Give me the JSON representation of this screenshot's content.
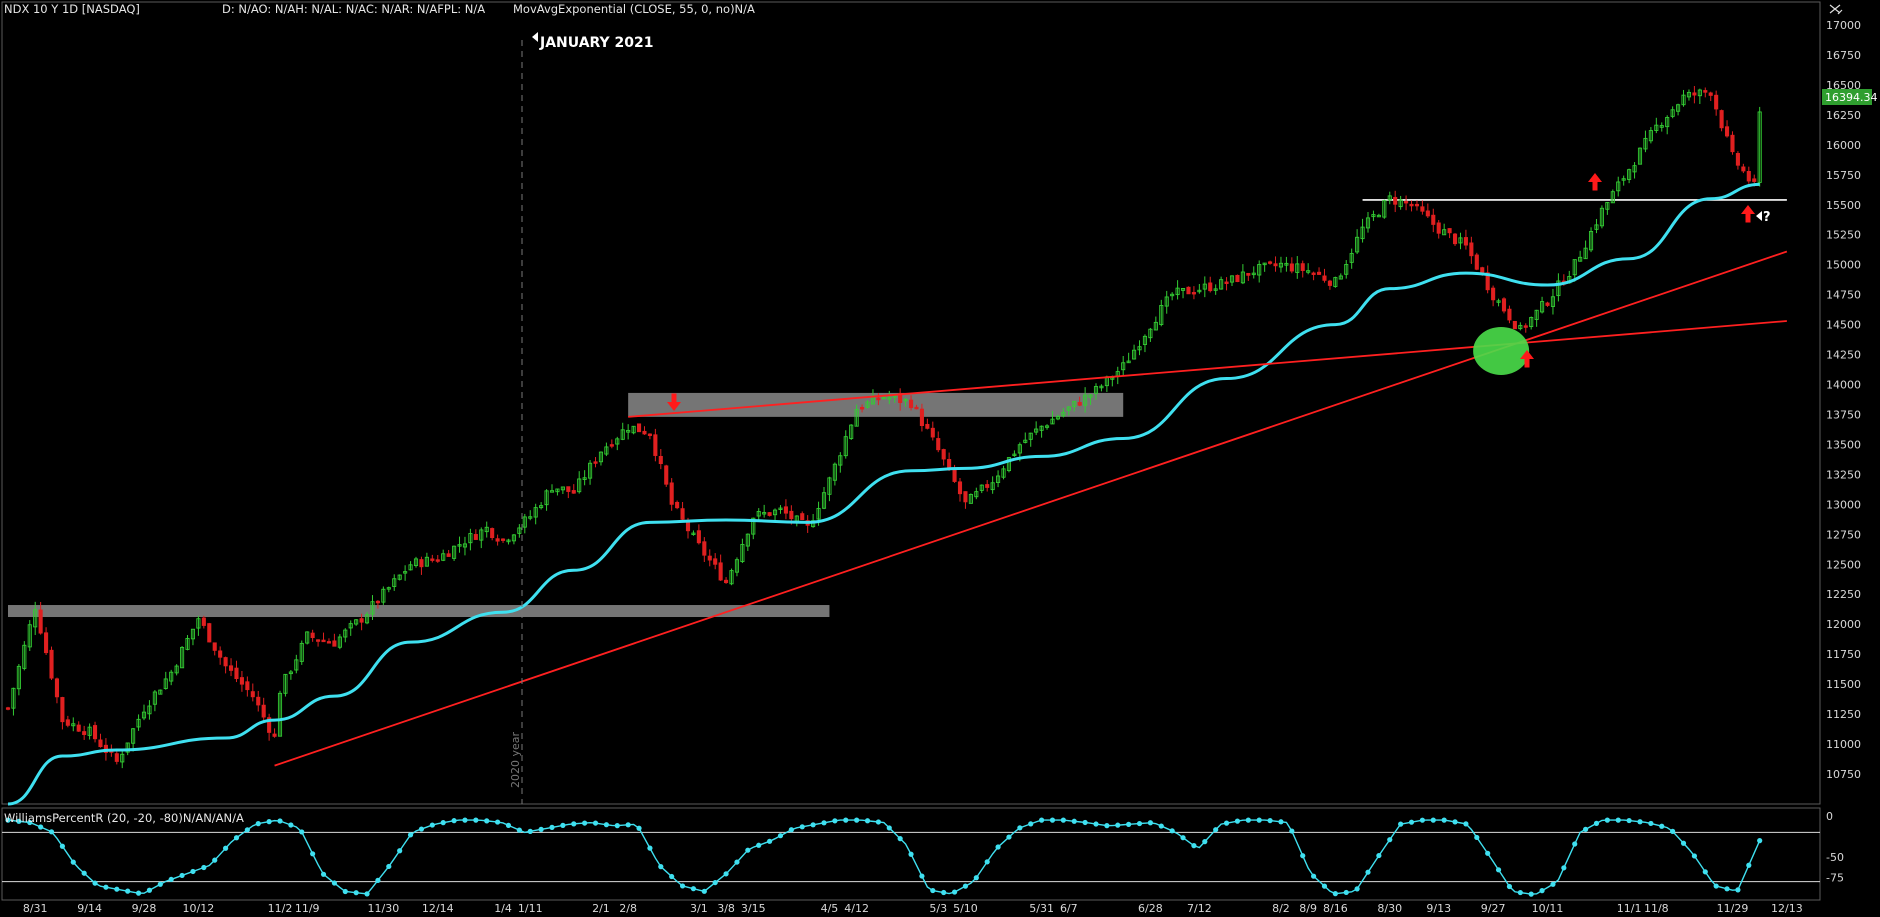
{
  "header": {
    "symbol": "NDX 10 Y 1D [NASDAQ]",
    "ohlc": "D: N/AO: N/AH: N/AL: N/AC: N/AR: N/AFPL: N/A",
    "study": "MovAvgExponential (CLOSE, 55, 0, no)N/A"
  },
  "annotations": {
    "period": "JANUARY 2021",
    "year_divider": "2020 year",
    "question": "?"
  },
  "lower_panel": {
    "title": "WilliamsPercentR (20, -20, -80)N/AN/AN/A"
  },
  "colors": {
    "background": "#000000",
    "up_candle": "#33cc33",
    "down_candle": "#e02020",
    "ema": "#3fe0f0",
    "trendline": "#ff2020",
    "resistance": "#ffffff",
    "zone": "#8a8a8a",
    "price_tag": "#2f9e2f",
    "highlight": "#4ade4a"
  },
  "chart_data": [
    {
      "type": "candlestick",
      "title": "NDX 10 Y 1D [NASDAQ]",
      "ylim": [
        10550,
        17120
      ],
      "y_ticks": [
        10750,
        11000,
        11250,
        11500,
        11750,
        12000,
        12250,
        12500,
        12750,
        13000,
        13250,
        13500,
        13750,
        14000,
        14250,
        14500,
        14750,
        15000,
        15250,
        15500,
        15750,
        16000,
        16250,
        16500,
        16750,
        17000
      ],
      "x_ticks": [
        "8/31",
        "9/14",
        "9/28",
        "10/12",
        "11/2",
        "11/9",
        "11/30",
        "12/14",
        "1/4",
        "1/11",
        "2/1",
        "2/8",
        "3/1",
        "3/8",
        "3/15",
        "4/5",
        "4/12",
        "5/3",
        "5/10",
        "5/31",
        "6/7",
        "6/28",
        "7/12",
        "8/2",
        "8/9",
        "8/16",
        "8/30",
        "9/13",
        "9/27",
        "10/11",
        "11/1",
        "11/8",
        "11/29",
        "12/13"
      ],
      "last_price": "16394.34",
      "close_path": [
        {
          "date": "8/24",
          "close": 11300
        },
        {
          "date": "8/31",
          "close": 12150
        },
        {
          "date": "9/8",
          "close": 11200
        },
        {
          "date": "9/14",
          "close": 11100
        },
        {
          "date": "9/21",
          "close": 10850
        },
        {
          "date": "9/28",
          "close": 11300
        },
        {
          "date": "10/5",
          "close": 11600
        },
        {
          "date": "10/12",
          "close": 12050
        },
        {
          "date": "10/19",
          "close": 11650
        },
        {
          "date": "10/26",
          "close": 11400
        },
        {
          "date": "10/30",
          "close": 11050
        },
        {
          "date": "11/2",
          "close": 11450
        },
        {
          "date": "11/9",
          "close": 11900
        },
        {
          "date": "11/16",
          "close": 11850
        },
        {
          "date": "11/23",
          "close": 12050
        },
        {
          "date": "11/30",
          "close": 12250
        },
        {
          "date": "12/7",
          "close": 12500
        },
        {
          "date": "12/14",
          "close": 12550
        },
        {
          "date": "12/21",
          "close": 12700
        },
        {
          "date": "12/28",
          "close": 12800
        },
        {
          "date": "1/4",
          "close": 12700
        },
        {
          "date": "1/11",
          "close": 12900
        },
        {
          "date": "1/19",
          "close": 13150
        },
        {
          "date": "1/26",
          "close": 13100
        },
        {
          "date": "2/1",
          "close": 13450
        },
        {
          "date": "2/8",
          "close": 13650
        },
        {
          "date": "2/16",
          "close": 13600
        },
        {
          "date": "2/22",
          "close": 13000
        },
        {
          "date": "3/1",
          "close": 12650
        },
        {
          "date": "3/8",
          "close": 12350
        },
        {
          "date": "3/15",
          "close": 12900
        },
        {
          "date": "3/22",
          "close": 12950
        },
        {
          "date": "3/29",
          "close": 12800
        },
        {
          "date": "4/5",
          "close": 13200
        },
        {
          "date": "4/12",
          "close": 13800
        },
        {
          "date": "4/19",
          "close": 13900
        },
        {
          "date": "4/26",
          "close": 13850
        },
        {
          "date": "5/3",
          "close": 13450
        },
        {
          "date": "5/10",
          "close": 13000
        },
        {
          "date": "5/17",
          "close": 13200
        },
        {
          "date": "5/24",
          "close": 13500
        },
        {
          "date": "5/31",
          "close": 13650
        },
        {
          "date": "6/7",
          "close": 13800
        },
        {
          "date": "6/14",
          "close": 13950
        },
        {
          "date": "6/21",
          "close": 14150
        },
        {
          "date": "6/28",
          "close": 14500
        },
        {
          "date": "7/6",
          "close": 14750
        },
        {
          "date": "7/12",
          "close": 14800
        },
        {
          "date": "7/19",
          "close": 14850
        },
        {
          "date": "7/26",
          "close": 14950
        },
        {
          "date": "8/2",
          "close": 15000
        },
        {
          "date": "8/9",
          "close": 14950
        },
        {
          "date": "8/16",
          "close": 14850
        },
        {
          "date": "8/23",
          "close": 15300
        },
        {
          "date": "8/30",
          "close": 15550
        },
        {
          "date": "9/7",
          "close": 15500
        },
        {
          "date": "9/13",
          "close": 15300
        },
        {
          "date": "9/20",
          "close": 15150
        },
        {
          "date": "9/27",
          "close": 14750
        },
        {
          "date": "10/4",
          "close": 14450
        },
        {
          "date": "10/11",
          "close": 14700
        },
        {
          "date": "10/18",
          "close": 15000
        },
        {
          "date": "10/25",
          "close": 15450
        },
        {
          "date": "11/1",
          "close": 15800
        },
        {
          "date": "11/8",
          "close": 16150
        },
        {
          "date": "11/15",
          "close": 16400
        },
        {
          "date": "11/22",
          "close": 16450
        },
        {
          "date": "11/29",
          "close": 15900
        },
        {
          "date": "12/3",
          "close": 15650
        },
        {
          "date": "12/6",
          "close": 16250
        }
      ],
      "ema": {
        "name": "MovAvgExponential (CLOSE, 55, 0, no)",
        "points": [
          {
            "date": "8/24",
            "value": 10500
          },
          {
            "date": "9/8",
            "value": 10900
          },
          {
            "date": "9/21",
            "value": 10950
          },
          {
            "date": "10/19",
            "value": 11050
          },
          {
            "date": "10/30",
            "value": 11200
          },
          {
            "date": "11/16",
            "value": 11400
          },
          {
            "date": "12/7",
            "value": 11850
          },
          {
            "date": "1/4",
            "value": 12100
          },
          {
            "date": "1/26",
            "value": 12450
          },
          {
            "date": "2/16",
            "value": 12850
          },
          {
            "date": "3/8",
            "value": 12870
          },
          {
            "date": "3/29",
            "value": 12850
          },
          {
            "date": "4/26",
            "value": 13280
          },
          {
            "date": "5/10",
            "value": 13300
          },
          {
            "date": "5/31",
            "value": 13400
          },
          {
            "date": "6/21",
            "value": 13550
          },
          {
            "date": "7/19",
            "value": 14050
          },
          {
            "date": "8/16",
            "value": 14500
          },
          {
            "date": "8/30",
            "value": 14800
          },
          {
            "date": "9/20",
            "value": 14930
          },
          {
            "date": "10/11",
            "value": 14830
          },
          {
            "date": "11/1",
            "value": 15050
          },
          {
            "date": "11/22",
            "value": 15550
          },
          {
            "date": "12/6",
            "value": 15670
          }
        ]
      },
      "levels": [
        {
          "kind": "zone",
          "low": 12060,
          "high": 12160,
          "from": "8/24",
          "to": "4/5"
        },
        {
          "kind": "zone",
          "low": 13730,
          "high": 13930,
          "from": "2/8",
          "to": "6/21"
        },
        {
          "kind": "resistance",
          "value": 15540,
          "from": "8/23",
          "to": "12/13"
        }
      ],
      "trendlines": [
        {
          "from": {
            "date": "10/30",
            "value": 10820
          },
          "to": {
            "date": "12/13",
            "value": 15110
          }
        },
        {
          "from": {
            "date": "2/8",
            "value": 13730
          },
          "to": {
            "date": "12/13",
            "value": 14530
          }
        }
      ]
    },
    {
      "type": "line",
      "title": "WilliamsPercentR (20, -20, -80)",
      "ylim": [
        -100,
        0
      ],
      "y_ticks": [
        0,
        -50,
        -75
      ],
      "thresholds": [
        -20,
        -80
      ],
      "values_note": "oscillates between overbought (-0 to -20) and oversold (-80 to -100)",
      "series_pattern": [
        -5,
        -8,
        -20,
        -60,
        -85,
        -90,
        -95,
        -80,
        -70,
        -60,
        -30,
        -10,
        -5,
        -15,
        -70,
        -92,
        -95,
        -60,
        -20,
        -10,
        -5,
        -5,
        -8,
        -20,
        -15,
        -10,
        -8,
        -12,
        -10,
        -60,
        -85,
        -92,
        -70,
        -40,
        -30,
        -15,
        -10,
        -5,
        -5,
        -8,
        -35,
        -90,
        -95,
        -80,
        -40,
        -15,
        -5,
        -5,
        -8,
        -12,
        -10,
        -8,
        -20,
        -40,
        -10,
        -5,
        -5,
        -8,
        -70,
        -95,
        -92,
        -50,
        -10,
        -5,
        -5,
        -10,
        -50,
        -92,
        -96,
        -80,
        -20,
        -5,
        -5,
        -8,
        -15,
        -45,
        -85,
        -92,
        -30
      ]
    }
  ]
}
